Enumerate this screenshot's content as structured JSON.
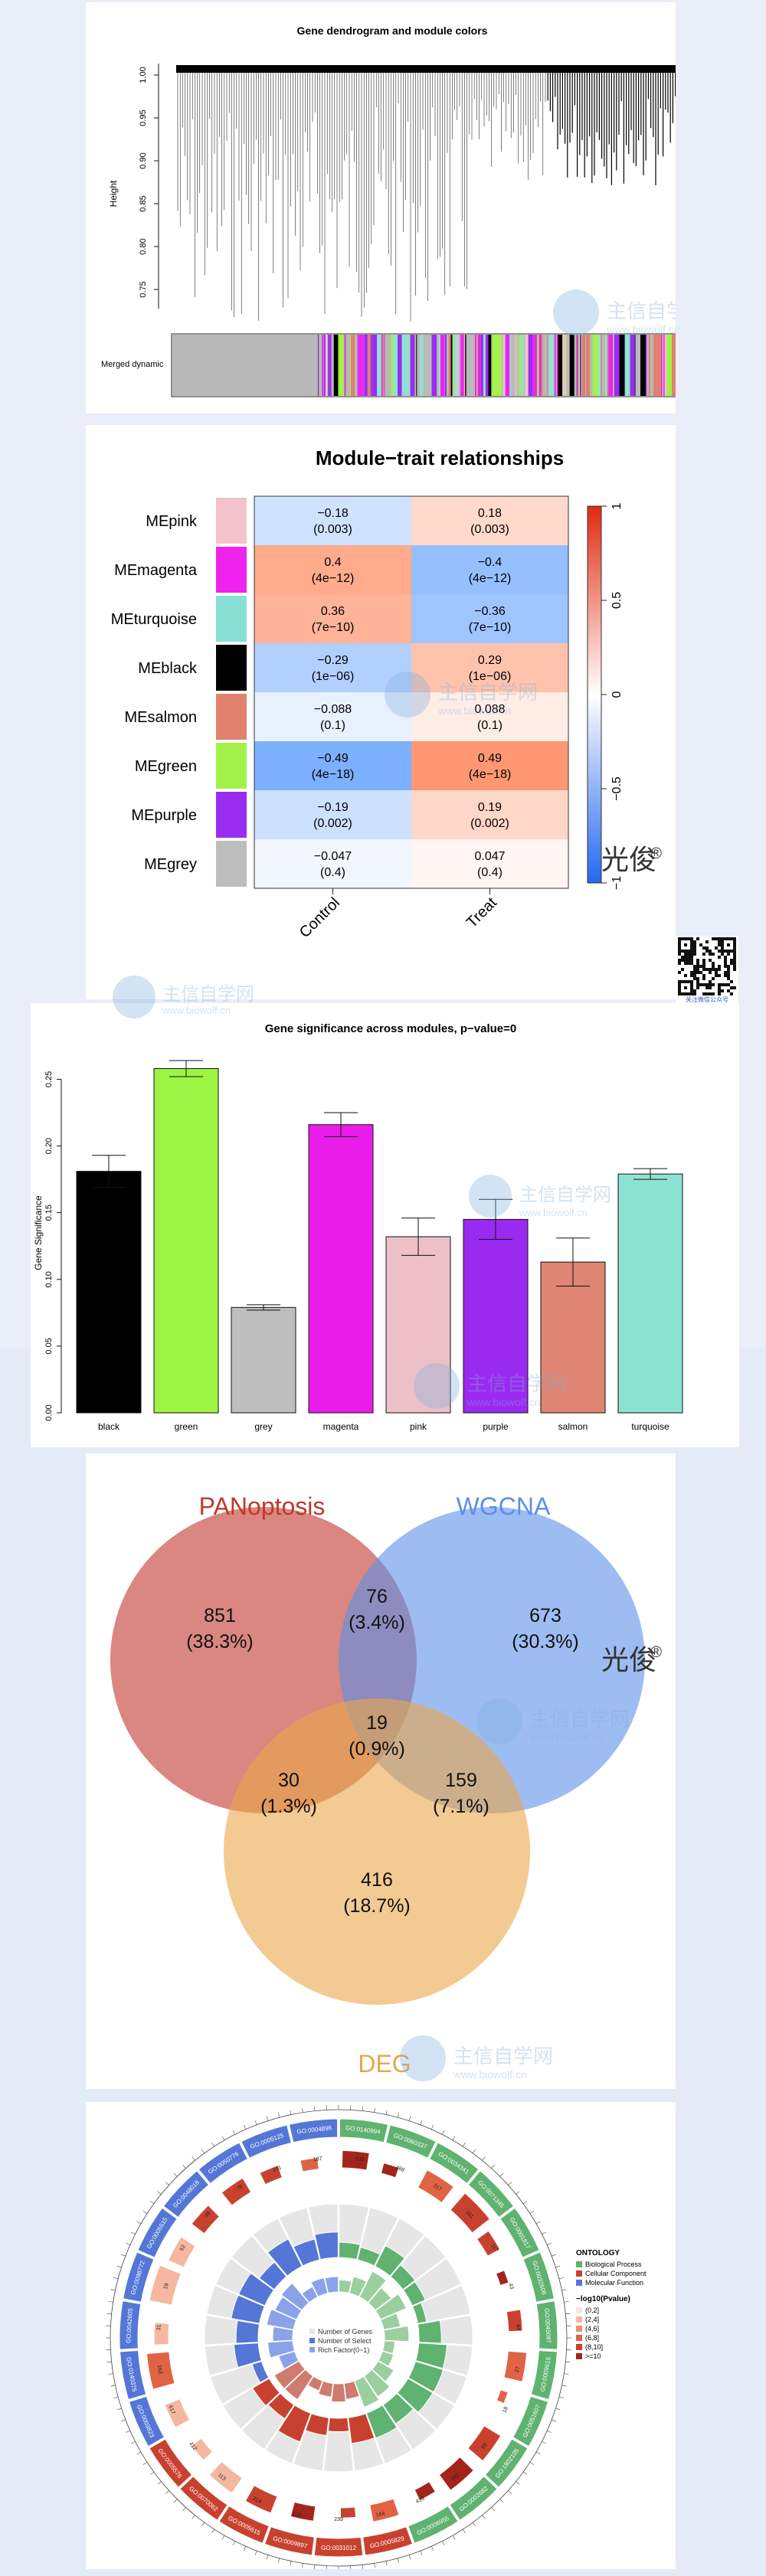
{
  "dendrogram": {
    "title": "Gene dendrogram and module colors",
    "ylabel": "Height",
    "yticks": [
      "1.00",
      "0.95",
      "0.90",
      "0.85",
      "0.80",
      "0.75"
    ],
    "row_label": "Merged dynamic"
  },
  "heatmap": {
    "title": "Module−trait relationships",
    "rows": [
      "MEpink",
      "MEmagenta",
      "MEturquoise",
      "MEblack",
      "MEsalmon",
      "MEgreen",
      "MEpurple",
      "MEgrey"
    ],
    "module_colors": [
      "#f4c2cb",
      "#ee24ee",
      "#86e0d4",
      "#000000",
      "#e0826e",
      "#a2f24a",
      "#9a2cf0",
      "#bdbdbd"
    ],
    "columns": [
      "Control",
      "Treat"
    ],
    "cells": [
      [
        {
          "r": "−0.18",
          "p": "(0.003)"
        },
        {
          "r": "0.18",
          "p": "(0.003)"
        }
      ],
      [
        {
          "r": "0.4",
          "p": "(4e−12)"
        },
        {
          "r": "−0.4",
          "p": "(4e−12)"
        }
      ],
      [
        {
          "r": "0.36",
          "p": "(7e−10)"
        },
        {
          "r": "−0.36",
          "p": "(7e−10)"
        }
      ],
      [
        {
          "r": "−0.29",
          "p": "(1e−06)"
        },
        {
          "r": "0.29",
          "p": "(1e−06)"
        }
      ],
      [
        {
          "r": "−0.088",
          "p": "(0.1)"
        },
        {
          "r": "0.088",
          "p": "(0.1)"
        }
      ],
      [
        {
          "r": "−0.49",
          "p": "(4e−18)"
        },
        {
          "r": "0.49",
          "p": "(4e−18)"
        }
      ],
      [
        {
          "r": "−0.19",
          "p": "(0.002)"
        },
        {
          "r": "0.19",
          "p": "(0.002)"
        }
      ],
      [
        {
          "r": "−0.047",
          "p": "(0.4)"
        },
        {
          "r": "0.047",
          "p": "(0.4)"
        }
      ]
    ],
    "scale_ticks": [
      "1",
      "0.5",
      "0",
      "−0.5",
      "−1"
    ],
    "brand": "光俊",
    "brand_mark": "®",
    "qr_caption": "关注微信公众号"
  },
  "chart_data": [
    {
      "type": "bar",
      "title": "Gene significance across modules, p−value=0",
      "ylabel": "Gene Significance",
      "xlabel": "",
      "categories": [
        "black",
        "green",
        "grey",
        "magenta",
        "pink",
        "purple",
        "salmon",
        "turquoise"
      ],
      "values": [
        0.181,
        0.258,
        0.079,
        0.216,
        0.132,
        0.145,
        0.113,
        0.179
      ],
      "errors": [
        0.012,
        0.006,
        0.002,
        0.009,
        0.014,
        0.015,
        0.018,
        0.004
      ],
      "colors": [
        "#000000",
        "#9cf542",
        "#bebebe",
        "#ea1cea",
        "#edc0c8",
        "#9b2af0",
        "#df8573",
        "#8ce3d2"
      ],
      "ylim": [
        0,
        0.26
      ],
      "ytick_labels": [
        "0.00",
        "0.05",
        "0.10",
        "0.15",
        "0.20",
        "0.25"
      ]
    },
    {
      "type": "venn",
      "sets": [
        "PANoptosis",
        "WGCNA",
        "DEG"
      ],
      "set_colors": [
        "#c0372b",
        "#5b8fe8",
        "#e9a649"
      ],
      "regions": [
        {
          "sets": [
            "PANoptosis"
          ],
          "count": "851",
          "pct": "(38.3%)"
        },
        {
          "sets": [
            "WGCNA"
          ],
          "count": "673",
          "pct": "(30.3%)"
        },
        {
          "sets": [
            "DEG"
          ],
          "count": "416",
          "pct": "(18.7%)"
        },
        {
          "sets": [
            "PANoptosis",
            "WGCNA"
          ],
          "count": "76",
          "pct": "(3.4%)"
        },
        {
          "sets": [
            "PANoptosis",
            "DEG"
          ],
          "count": "30",
          "pct": "(1.3%)"
        },
        {
          "sets": [
            "WGCNA",
            "DEG"
          ],
          "count": "159",
          "pct": "(7.1%)"
        },
        {
          "sets": [
            "PANoptosis",
            "WGCNA",
            "DEG"
          ],
          "count": "19",
          "pct": "(0.9%)"
        }
      ]
    }
  ],
  "go_circle": {
    "terms": [
      "GO:0140994",
      "GO:0060337",
      "GO:0034341",
      "GO:0071345",
      "GO:0001817",
      "GO:0032606",
      "GO:0045087",
      "GO:0009615",
      "GO:0051607",
      "GO:1902105",
      "GO:0002682",
      "GO:0006955",
      "GO:0005829",
      "GO:0031012",
      "GO:0009897",
      "GO:0005615",
      "GO:0070062",
      "GO:0005576",
      "GO:0003823",
      "GO:0140375",
      "GO:0042605",
      "GO:0098772",
      "GO:0005515",
      "GO:0048018",
      "GO:0050776",
      "GO:0005125",
      "GO:0004896"
    ],
    "counts": [
      "439",
      "468",
      "317",
      "161",
      "117",
      "43",
      "64",
      "27",
      "18",
      "93",
      "181",
      "433",
      "164",
      "239",
      "120",
      "214",
      "113",
      "412",
      "617",
      "163",
      "31",
      "19",
      "52",
      "49",
      "78",
      "231",
      "187"
    ],
    "inner_legend": [
      "Number of Genes",
      "Number of Select",
      "Rich Factor(0~1)"
    ],
    "ontology_title": "ONTOLOGY",
    "ontology_items": [
      "Biological Process",
      "Cellular Component",
      "Molecular Function"
    ],
    "ontology_colors": [
      "#5fb26f",
      "#c8412f",
      "#5476d6"
    ],
    "pvalue_title": "−log10(Pvalue)",
    "pvalue_items": [
      "(0,2]",
      "(2,4]",
      "(4,6]",
      "(6,8]",
      "(8,10]",
      ">=10"
    ],
    "pvalue_colors": [
      "#fbe3d8",
      "#f5b79f",
      "#ee8e6c",
      "#e06343",
      "#c8412f",
      "#a3241b"
    ]
  },
  "watermark": {
    "name": "主信自学网",
    "url": "www.biowolf.cn"
  }
}
